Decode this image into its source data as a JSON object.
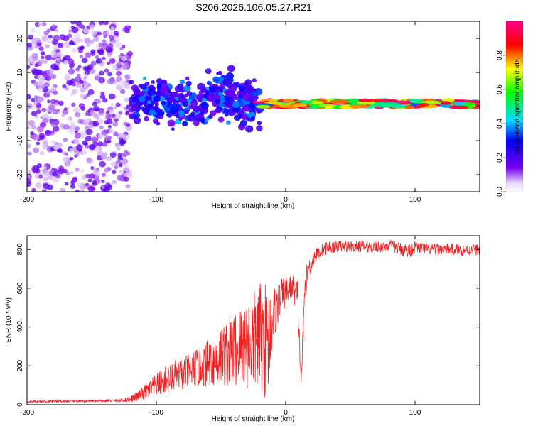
{
  "title": "S206.2026.106.05.27.R21",
  "chart_data": [
    {
      "type": "heatmap",
      "name": "spectrogram",
      "xlabel": "Height of straight line (km)",
      "ylabel": "Frequency (Hz)",
      "xlim": [
        -200,
        150
      ],
      "ylim": [
        -25,
        25
      ],
      "xticks": [
        -200,
        -100,
        0,
        100
      ],
      "yticks": [
        -20,
        -10,
        0,
        10,
        20
      ],
      "colorbar": {
        "label": "Normalized spectral amplitude",
        "range": [
          0,
          1
        ],
        "ticks": [
          0.0,
          0.2,
          0.4,
          0.6,
          0.8
        ]
      },
      "regions": [
        {
          "x_range": [
            -200,
            -120
          ],
          "freq_range": [
            -25,
            25
          ],
          "amplitude": "low, scattered noise",
          "amplitude_range": [
            0.05,
            0.2
          ]
        },
        {
          "x_range": [
            -120,
            -20
          ],
          "freq_range": [
            -5,
            10
          ],
          "amplitude": "moderate, band near 0 Hz",
          "amplitude_range": [
            0.15,
            0.4
          ]
        },
        {
          "x_range": [
            -20,
            150
          ],
          "freq_range": [
            -1,
            3
          ],
          "amplitude": "strong narrow band near 0-1 Hz",
          "amplitude_range": [
            0.3,
            1.0
          ]
        }
      ]
    },
    {
      "type": "line",
      "name": "snr",
      "xlabel": "Height of straight line (km)",
      "ylabel": "SNR (10 * v/v)",
      "xlim": [
        -200,
        150
      ],
      "ylim": [
        0,
        870
      ],
      "xticks": [
        -200,
        -100,
        0,
        100
      ],
      "yticks": [
        0,
        200,
        400,
        600,
        800
      ],
      "color": "#ee2222",
      "series": [
        {
          "name": "SNR",
          "x": [
            -200,
            -180,
            -160,
            -140,
            -125,
            -115,
            -105,
            -95,
            -85,
            -75,
            -65,
            -55,
            -45,
            -35,
            -25,
            -18,
            -14,
            -10,
            -5,
            0,
            5,
            9,
            12,
            15,
            18,
            22,
            27,
            32,
            40,
            50,
            60,
            70,
            80,
            90,
            95,
            100,
            110,
            120,
            130,
            140,
            150
          ],
          "y": [
            15,
            18,
            18,
            20,
            22,
            40,
            80,
            120,
            150,
            170,
            200,
            230,
            270,
            300,
            330,
            350,
            320,
            460,
            540,
            580,
            610,
            560,
            120,
            620,
            700,
            760,
            790,
            810,
            815,
            815,
            815,
            810,
            820,
            800,
            790,
            810,
            800,
            800,
            800,
            795,
            800
          ],
          "noise_amplitude": [
            5,
            6,
            6,
            6,
            8,
            25,
            50,
            70,
            80,
            90,
            110,
            140,
            180,
            220,
            260,
            300,
            300,
            160,
            100,
            80,
            60,
            100,
            40,
            70,
            60,
            40,
            35,
            35,
            30,
            30,
            30,
            30,
            30,
            35,
            40,
            30,
            30,
            30,
            30,
            30,
            30
          ]
        }
      ]
    }
  ]
}
